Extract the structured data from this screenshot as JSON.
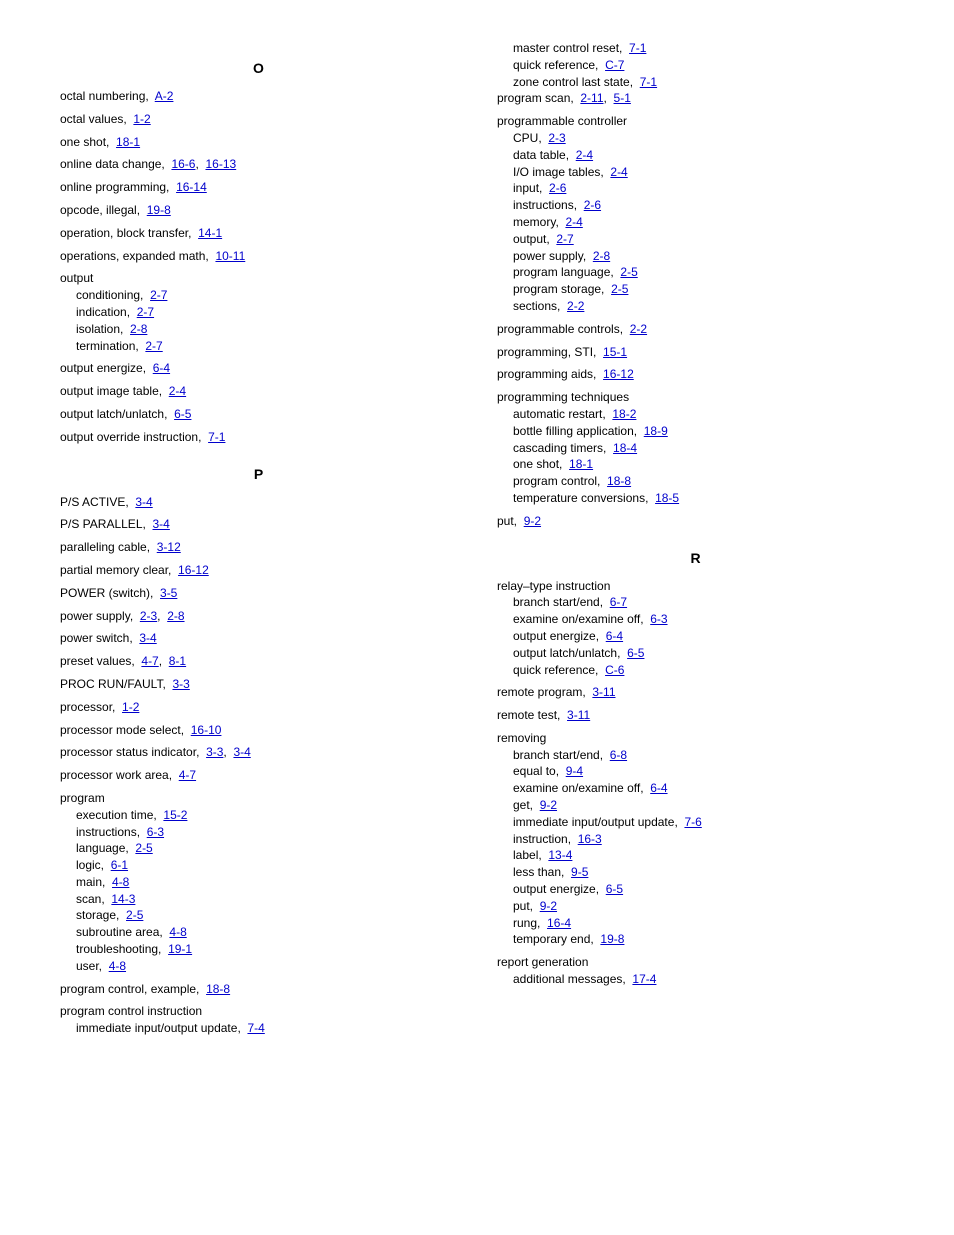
{
  "left": {
    "sections": [
      {
        "letter": "O",
        "entries": [
          {
            "term": "octal numbering,",
            "pages": [
              "A-2"
            ]
          },
          {
            "term": "octal values,",
            "pages": [
              "1-2"
            ]
          },
          {
            "term": "one shot,",
            "pages": [
              "18-1"
            ]
          },
          {
            "term": "online data change,",
            "pages": [
              "16-6",
              "16-13"
            ]
          },
          {
            "term": "online programming,",
            "pages": [
              "16-14"
            ]
          },
          {
            "term": "opcode, illegal,",
            "pages": [
              "19-8"
            ]
          },
          {
            "term": "operation, block transfer,",
            "pages": [
              "14-1"
            ]
          },
          {
            "term": "operations, expanded math,",
            "pages": [
              "10-11"
            ]
          },
          {
            "term": "output",
            "subs": [
              {
                "term": "conditioning,",
                "pages": [
                  "2-7"
                ]
              },
              {
                "term": "indication,",
                "pages": [
                  "2-7"
                ]
              },
              {
                "term": "isolation,",
                "pages": [
                  "2-8"
                ]
              },
              {
                "term": "termination,",
                "pages": [
                  "2-7"
                ]
              }
            ]
          },
          {
            "term": "output energize,",
            "pages": [
              "6-4"
            ]
          },
          {
            "term": "output image table,",
            "pages": [
              "2-4"
            ]
          },
          {
            "term": "output latch/unlatch,",
            "pages": [
              "6-5"
            ]
          },
          {
            "term": "output override instruction,",
            "pages": [
              "7-1"
            ]
          }
        ]
      },
      {
        "letter": "P",
        "entries": [
          {
            "term": "P/S ACTIVE,",
            "pages": [
              "3-4"
            ]
          },
          {
            "term": "P/S PARALLEL,",
            "pages": [
              "3-4"
            ]
          },
          {
            "term": "paralleling cable,",
            "pages": [
              "3-12"
            ]
          },
          {
            "term": "partial memory clear,",
            "pages": [
              "16-12"
            ]
          },
          {
            "term": "POWER (switch),",
            "pages": [
              "3-5"
            ]
          },
          {
            "term": "power supply,",
            "pages": [
              "2-3",
              "2-8"
            ]
          },
          {
            "term": "power switch,",
            "pages": [
              "3-4"
            ]
          },
          {
            "term": "preset values,",
            "pages": [
              "4-7",
              "8-1"
            ]
          },
          {
            "term": "PROC RUN/FAULT,",
            "pages": [
              "3-3"
            ]
          },
          {
            "term": "processor,",
            "pages": [
              "1-2"
            ]
          },
          {
            "term": "processor mode select,",
            "pages": [
              "16-10"
            ]
          },
          {
            "term": "processor status indicator,",
            "pages": [
              "3-3",
              "3-4"
            ]
          },
          {
            "term": "processor work area,",
            "pages": [
              "4-7"
            ]
          },
          {
            "term": "program",
            "subs": [
              {
                "term": "execution time,",
                "pages": [
                  "15-2"
                ]
              },
              {
                "term": "instructions,",
                "pages": [
                  "6-3"
                ]
              },
              {
                "term": "language,",
                "pages": [
                  "2-5"
                ]
              },
              {
                "term": "logic,",
                "pages": [
                  "6-1"
                ]
              },
              {
                "term": "main,",
                "pages": [
                  "4-8"
                ]
              },
              {
                "term": "scan,",
                "pages": [
                  "14-3"
                ]
              },
              {
                "term": "storage,",
                "pages": [
                  "2-5"
                ]
              },
              {
                "term": "subroutine area,",
                "pages": [
                  "4-8"
                ]
              },
              {
                "term": "troubleshooting,",
                "pages": [
                  "19-1"
                ]
              },
              {
                "term": "user,",
                "pages": [
                  "4-8"
                ]
              }
            ]
          },
          {
            "term": "program control, example,",
            "pages": [
              "18-8"
            ]
          },
          {
            "term": "program control instruction",
            "subs": [
              {
                "term": "immediate input/output update,",
                "pages": [
                  "7-4"
                ]
              }
            ]
          }
        ]
      }
    ]
  },
  "right": {
    "continuation": [
      {
        "term": "master control reset,",
        "pages": [
          "7-1"
        ],
        "sub": true
      },
      {
        "term": "quick reference,",
        "pages": [
          "C-7"
        ],
        "sub": true
      },
      {
        "term": "zone control last state,",
        "pages": [
          "7-1"
        ],
        "sub": true
      },
      {
        "term": "program scan,",
        "pages": [
          "2-11",
          "5-1"
        ]
      },
      {
        "term": "programmable controller",
        "subs": [
          {
            "term": "CPU,",
            "pages": [
              "2-3"
            ]
          },
          {
            "term": "data table,",
            "pages": [
              "2-4"
            ]
          },
          {
            "term": "I/O image tables,",
            "pages": [
              "2-4"
            ]
          },
          {
            "term": "input,",
            "pages": [
              "2-6"
            ]
          },
          {
            "term": "instructions,",
            "pages": [
              "2-6"
            ]
          },
          {
            "term": "memory,",
            "pages": [
              "2-4"
            ]
          },
          {
            "term": "output,",
            "pages": [
              "2-7"
            ]
          },
          {
            "term": "power supply,",
            "pages": [
              "2-8"
            ]
          },
          {
            "term": "program language,",
            "pages": [
              "2-5"
            ]
          },
          {
            "term": "program storage,",
            "pages": [
              "2-5"
            ]
          },
          {
            "term": "sections,",
            "pages": [
              "2-2"
            ]
          }
        ]
      },
      {
        "term": "programmable controls,",
        "pages": [
          "2-2"
        ]
      },
      {
        "term": "programming, STI,",
        "pages": [
          "15-1"
        ]
      },
      {
        "term": "programming aids,",
        "pages": [
          "16-12"
        ]
      },
      {
        "term": "programming techniques",
        "subs": [
          {
            "term": "automatic restart,",
            "pages": [
              "18-2"
            ]
          },
          {
            "term": "bottle filling application,",
            "pages": [
              "18-9"
            ]
          },
          {
            "term": "cascading timers,",
            "pages": [
              "18-4"
            ]
          },
          {
            "term": "one shot,",
            "pages": [
              "18-1"
            ]
          },
          {
            "term": "program control,",
            "pages": [
              "18-8"
            ]
          },
          {
            "term": "temperature conversions,",
            "pages": [
              "18-5"
            ]
          }
        ]
      },
      {
        "term": "put,",
        "pages": [
          "9-2"
        ]
      }
    ],
    "sections": [
      {
        "letter": "R",
        "entries": [
          {
            "term": "relay–type instruction",
            "subs": [
              {
                "term": "branch start/end,",
                "pages": [
                  "6-7"
                ]
              },
              {
                "term": "examine on/examine off,",
                "pages": [
                  "6-3"
                ]
              },
              {
                "term": "output energize,",
                "pages": [
                  "6-4"
                ]
              },
              {
                "term": "output latch/unlatch,",
                "pages": [
                  "6-5"
                ]
              },
              {
                "term": "quick reference,",
                "pages": [
                  "C-6"
                ]
              }
            ]
          },
          {
            "term": "remote program,",
            "pages": [
              "3-11"
            ]
          },
          {
            "term": "remote test,",
            "pages": [
              "3-11"
            ]
          },
          {
            "term": "removing",
            "subs": [
              {
                "term": "branch start/end,",
                "pages": [
                  "6-8"
                ]
              },
              {
                "term": "equal to,",
                "pages": [
                  "9-4"
                ]
              },
              {
                "term": "examine on/examine off,",
                "pages": [
                  "6-4"
                ]
              },
              {
                "term": "get,",
                "pages": [
                  "9-2"
                ]
              },
              {
                "term": "immediate input/output update,",
                "pages": [
                  "7-6"
                ]
              },
              {
                "term": "instruction,",
                "pages": [
                  "16-3"
                ]
              },
              {
                "term": "label,",
                "pages": [
                  "13-4"
                ]
              },
              {
                "term": "less than,",
                "pages": [
                  "9-5"
                ]
              },
              {
                "term": "output energize,",
                "pages": [
                  "6-5"
                ]
              },
              {
                "term": "put,",
                "pages": [
                  "9-2"
                ]
              },
              {
                "term": "rung,",
                "pages": [
                  "16-4"
                ]
              },
              {
                "term": "temporary end,",
                "pages": [
                  "19-8"
                ]
              }
            ]
          },
          {
            "term": "report generation",
            "subs": [
              {
                "term": "additional messages,",
                "pages": [
                  "17-4"
                ]
              }
            ]
          }
        ]
      }
    ]
  }
}
